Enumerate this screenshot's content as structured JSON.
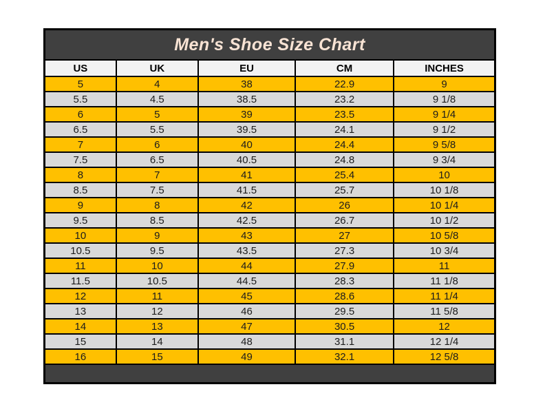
{
  "chart_data": {
    "type": "table",
    "title": "Men's Shoe Size Chart",
    "columns": [
      "US",
      "UK",
      "EU",
      "CM",
      "INCHES"
    ],
    "rows": [
      [
        "5",
        "4",
        "38",
        "22.9",
        "9"
      ],
      [
        "5.5",
        "4.5",
        "38.5",
        "23.2",
        "9 1/8"
      ],
      [
        "6",
        "5",
        "39",
        "23.5",
        "9 1/4"
      ],
      [
        "6.5",
        "5.5",
        "39.5",
        "24.1",
        "9 1/2"
      ],
      [
        "7",
        "6",
        "40",
        "24.4",
        "9 5/8"
      ],
      [
        "7.5",
        "6.5",
        "40.5",
        "24.8",
        "9 3/4"
      ],
      [
        "8",
        "7",
        "41",
        "25.4",
        "10"
      ],
      [
        "8.5",
        "7.5",
        "41.5",
        "25.7",
        "10 1/8"
      ],
      [
        "9",
        "8",
        "42",
        "26",
        "10 1/4"
      ],
      [
        "9.5",
        "8.5",
        "42.5",
        "26.7",
        "10 1/2"
      ],
      [
        "10",
        "9",
        "43",
        "27",
        "10 5/8"
      ],
      [
        "10.5",
        "9.5",
        "43.5",
        "27.3",
        "10 3/4"
      ],
      [
        "11",
        "10",
        "44",
        "27.9",
        "11"
      ],
      [
        "11.5",
        "10.5",
        "44.5",
        "28.3",
        "11 1/8"
      ],
      [
        "12",
        "11",
        "45",
        "28.6",
        "11 1/4"
      ],
      [
        "13",
        "12",
        "46",
        "29.5",
        "11 5/8"
      ],
      [
        "14",
        "13",
        "47",
        "30.5",
        "12"
      ],
      [
        "15",
        "14",
        "48",
        "31.1",
        "12 1/4"
      ],
      [
        "16",
        "15",
        "49",
        "32.1",
        "12 5/8"
      ]
    ],
    "row_striping": "first row yellow, alternating yellow/gray",
    "colors": {
      "title_bar_bg": "#404040",
      "title_text": "#f8e3d4",
      "row_yellow": "#ffc000",
      "row_gray": "#d9d9d9",
      "column_header_bg": "#f2f2f2",
      "gridline": "#000000",
      "cell_text": "#1c1c1c"
    }
  }
}
